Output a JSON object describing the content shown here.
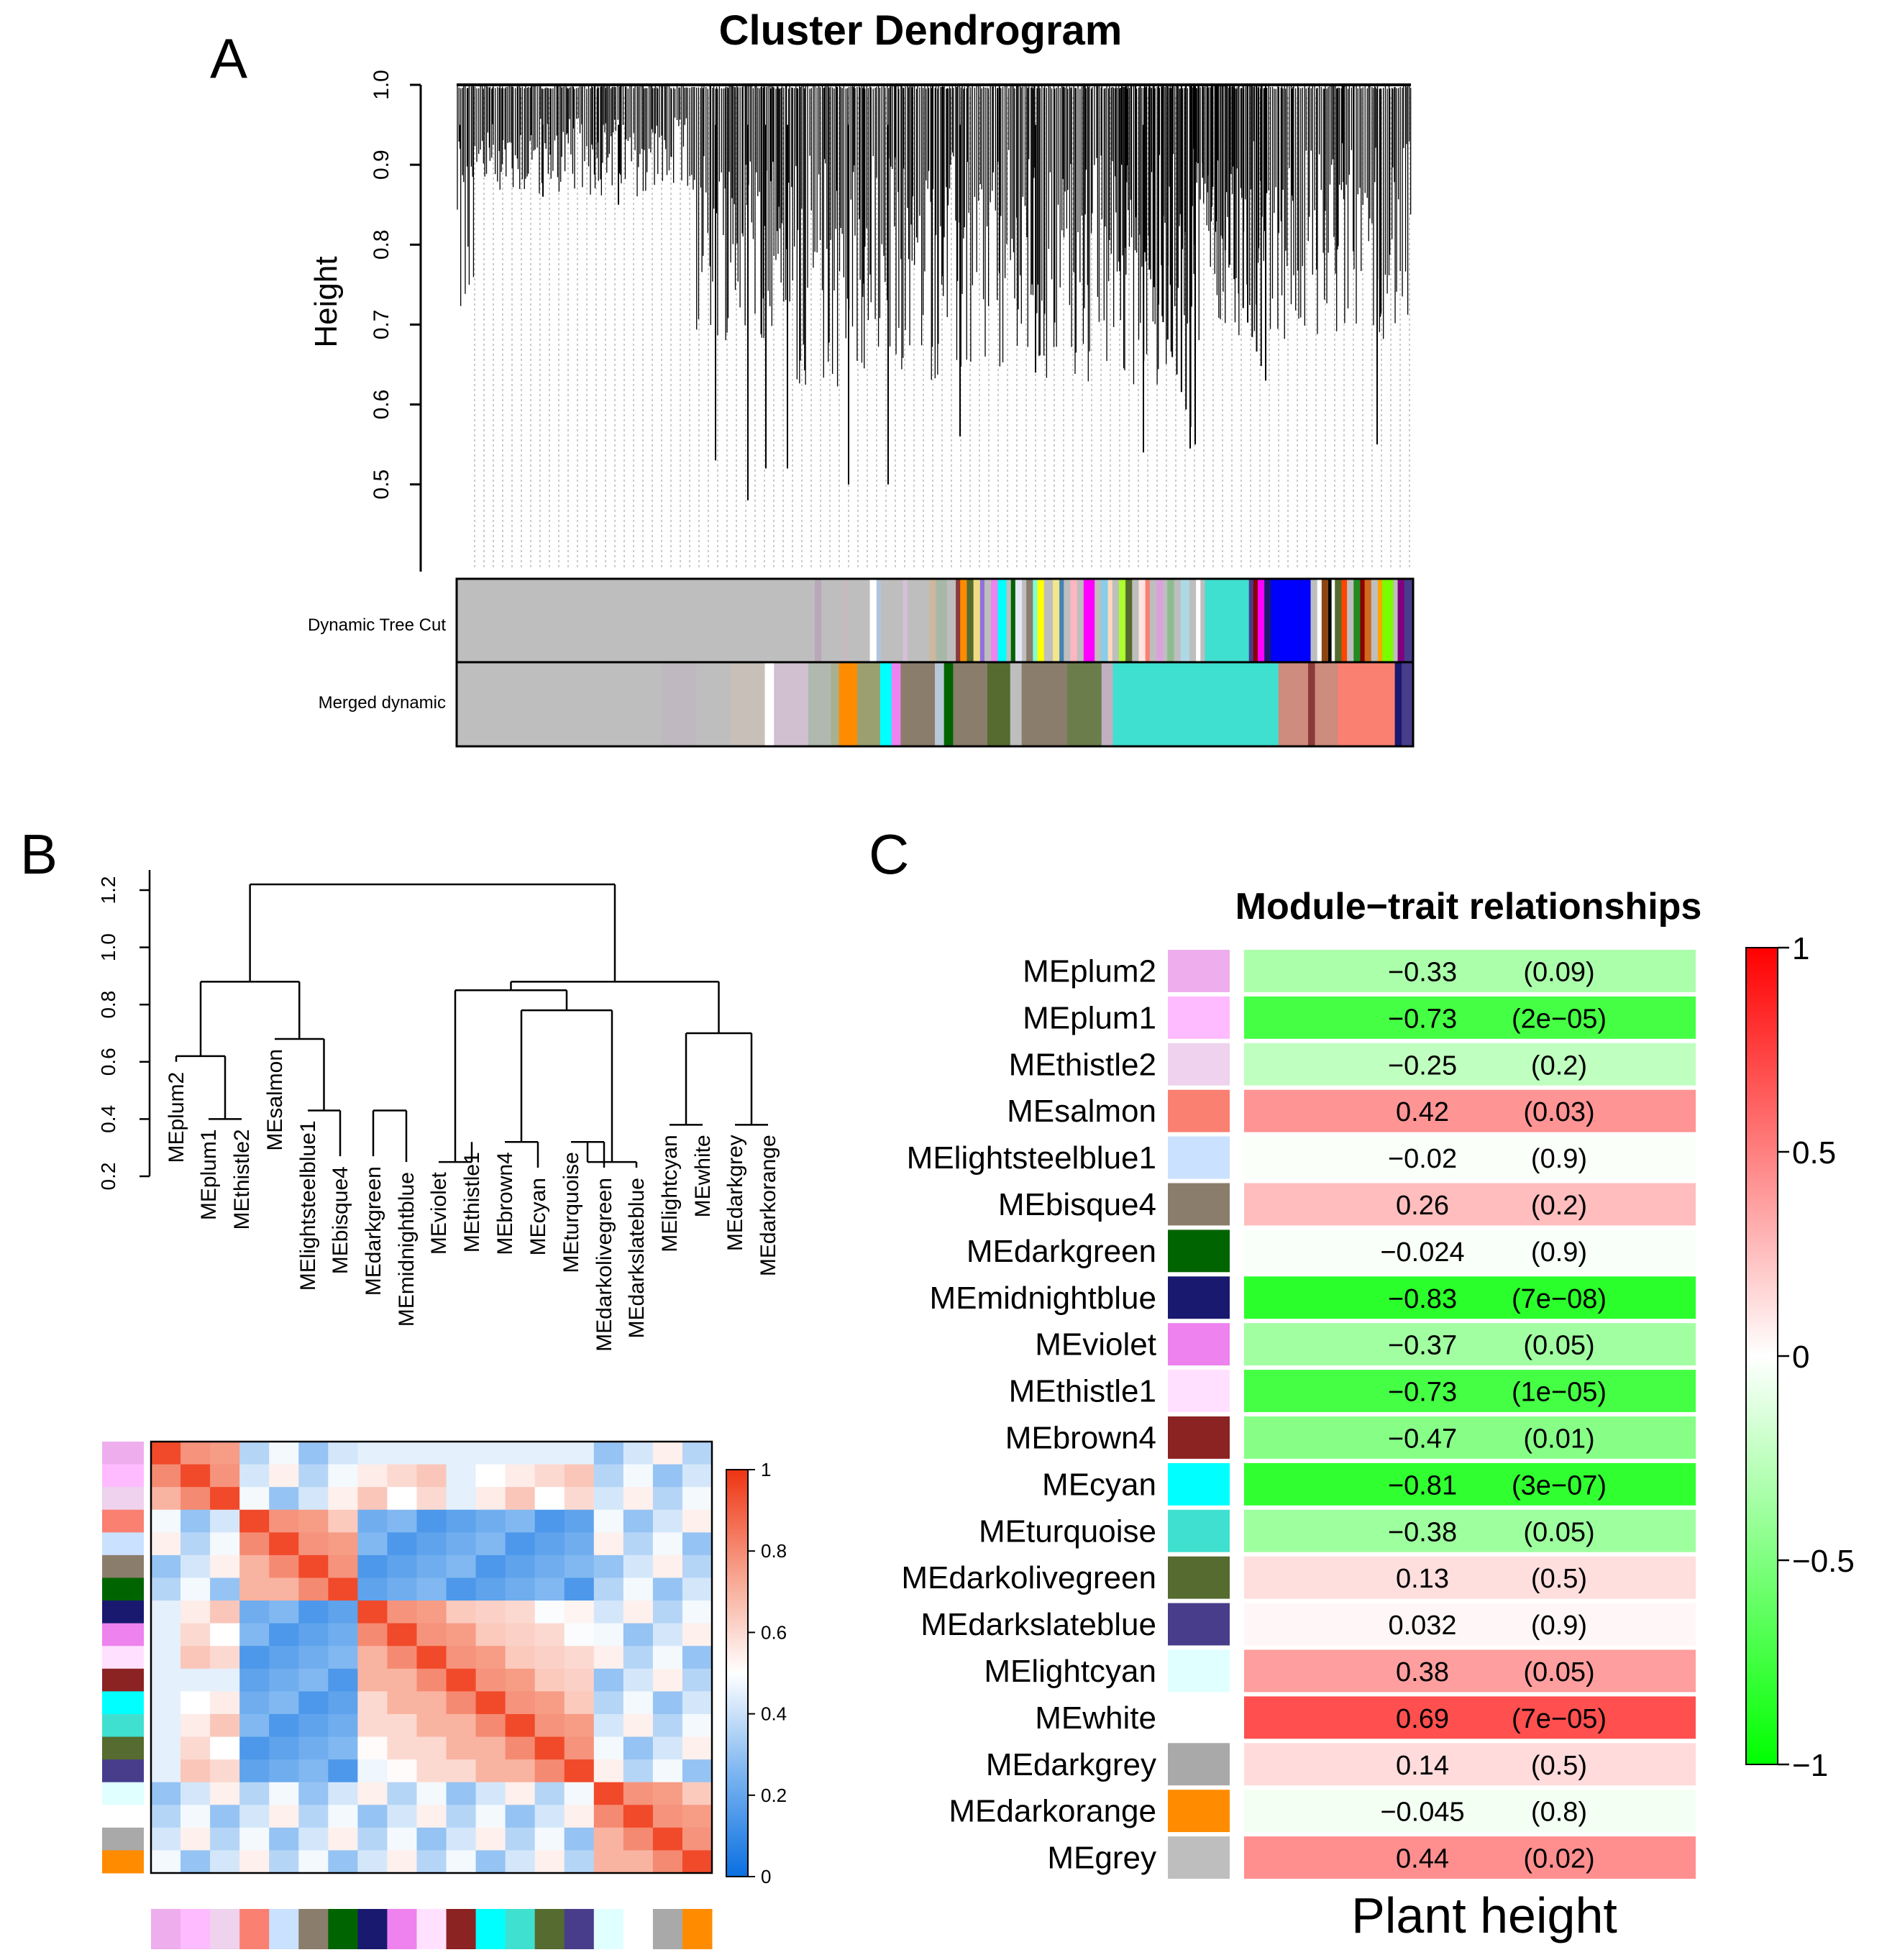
{
  "panel_labels": {
    "a": "A",
    "b": "B",
    "c": "C"
  },
  "chart_data": [
    {
      "type": "dendrogram",
      "title": "Cluster Dendrogram",
      "ylabel": "Height",
      "ylim": [
        0.4,
        1.0
      ],
      "yticks": [
        0.5,
        0.6,
        0.7,
        0.8,
        0.9,
        1.0
      ],
      "color_rows": [
        "Dynamic Tree Cut",
        "Merged dynamic"
      ],
      "dynamic_segments": [
        [
          "#bebebe",
          0.325
        ],
        [
          "#b8a8b8",
          0.006
        ],
        [
          "#bebebe",
          0.02
        ],
        [
          "#c8b8c0",
          0.004
        ],
        [
          "#bebebe",
          0.02
        ],
        [
          "#ffffff",
          0.006
        ],
        [
          "#b0c4de",
          0.004
        ],
        [
          "#bebebe",
          0.02
        ],
        [
          "#d8bfd8",
          0.004
        ],
        [
          "#bebebe",
          0.02
        ],
        [
          "#cdb79e",
          0.006
        ],
        [
          "#a8b8a8",
          0.01
        ],
        [
          "#bebebe",
          0.008
        ],
        [
          "#8b3a3a",
          0.004
        ],
        [
          "#ff8c00",
          0.006
        ],
        [
          "#556b2f",
          0.006
        ],
        [
          "#eedd82",
          0.006
        ],
        [
          "#9370db",
          0.004
        ],
        [
          "#bebebe",
          0.006
        ],
        [
          "#ee82ee",
          0.006
        ],
        [
          "#00ffff",
          0.008
        ],
        [
          "#bebebe",
          0.004
        ],
        [
          "#006400",
          0.004
        ],
        [
          "#e6e6fa",
          0.006
        ],
        [
          "#bebebe",
          0.004
        ],
        [
          "#8b7d6b",
          0.006
        ],
        [
          "#7fffd4",
          0.004
        ],
        [
          "#ffff00",
          0.006
        ],
        [
          "#bebebe",
          0.008
        ],
        [
          "#f0e68c",
          0.006
        ],
        [
          "#4682b4",
          0.004
        ],
        [
          "#bebebe",
          0.006
        ],
        [
          "#ffb6c1",
          0.006
        ],
        [
          "#bebebe",
          0.006
        ],
        [
          "#ff00ff",
          0.01
        ],
        [
          "#bebebe",
          0.006
        ],
        [
          "#87ceeb",
          0.006
        ],
        [
          "#ffdab9",
          0.004
        ],
        [
          "#bebebe",
          0.006
        ],
        [
          "#adff2f",
          0.006
        ],
        [
          "#556b2f",
          0.006
        ],
        [
          "#bebebe",
          0.006
        ],
        [
          "#ffe4e1",
          0.006
        ],
        [
          "#fa8072",
          0.004
        ],
        [
          "#bebebe",
          0.006
        ],
        [
          "#dda0dd",
          0.006
        ],
        [
          "#bebebe",
          0.004
        ],
        [
          "#8fbc8f",
          0.006
        ],
        [
          "#bebebe",
          0.006
        ],
        [
          "#add8e6",
          0.008
        ],
        [
          "#bebebe",
          0.006
        ],
        [
          "#ffffff",
          0.004
        ],
        [
          "#bebebe",
          0.004
        ],
        [
          "#40e0d0",
          0.04
        ],
        [
          "#483d8b",
          0.004
        ],
        [
          "#8b0000",
          0.004
        ],
        [
          "#ff00ff",
          0.006
        ],
        [
          "#191970",
          0.006
        ],
        [
          "#0000ff",
          0.036
        ],
        [
          "#bebebe",
          0.006
        ],
        [
          "#ffffff",
          0.004
        ],
        [
          "#8b4513",
          0.006
        ],
        [
          "#000000",
          0.003
        ],
        [
          "#ffffff",
          0.003
        ],
        [
          "#556b2f",
          0.006
        ],
        [
          "#ff4500",
          0.005
        ],
        [
          "#bebebe",
          0.006
        ],
        [
          "#228b22",
          0.006
        ],
        [
          "#8b0000",
          0.004
        ],
        [
          "#d2691e",
          0.006
        ],
        [
          "#bebebe",
          0.006
        ],
        [
          "#ffa500",
          0.004
        ],
        [
          "#7cfc00",
          0.01
        ],
        [
          "#bebebe",
          0.004
        ],
        [
          "#800080",
          0.006
        ],
        [
          "#483d8b",
          0.008
        ]
      ],
      "merged_segments": [
        [
          "#bebebe",
          0.18
        ],
        [
          "#c0b8c0",
          0.03
        ],
        [
          "#bebebe",
          0.03
        ],
        [
          "#c8c0b8",
          0.03
        ],
        [
          "#ffffff",
          0.008
        ],
        [
          "#d0c0d0",
          0.03
        ],
        [
          "#b0b8b0",
          0.02
        ],
        [
          "#a8b090",
          0.007
        ],
        [
          "#ff8c00",
          0.016
        ],
        [
          "#9aa070",
          0.02
        ],
        [
          "#00ffff",
          0.01
        ],
        [
          "#ee82ee",
          0.008
        ],
        [
          "#8b7d6b",
          0.03
        ],
        [
          "#b8c8d8",
          0.008
        ],
        [
          "#006400",
          0.008
        ],
        [
          "#8b7d6b",
          0.03
        ],
        [
          "#556b2f",
          0.02
        ],
        [
          "#bebebe",
          0.01
        ],
        [
          "#8b7d6b",
          0.04
        ],
        [
          "#6b7d4b",
          0.03
        ],
        [
          "#c0b0c0",
          0.01
        ],
        [
          "#40e0d0",
          0.145
        ],
        [
          "#cd8c7d",
          0.026
        ],
        [
          "#8b3a3a",
          0.006
        ],
        [
          "#cd8c7d",
          0.02
        ],
        [
          "#fa8072",
          0.05
        ],
        [
          "#191970",
          0.006
        ],
        [
          "#483d8b",
          0.01
        ]
      ]
    },
    {
      "type": "dendrogram",
      "ylim": [
        0.2,
        1.2
      ],
      "yticks": [
        0.2,
        0.4,
        0.6,
        0.8,
        1.0,
        1.2
      ],
      "leaves": [
        "MEplum2",
        "MEplum1",
        "MEthistle2",
        "MEsalmon",
        "MElightsteelblue1",
        "MEbisque4",
        "MEdarkgreen",
        "MEmidnightblue",
        "MEviolet",
        "MEthistle1",
        "MEbrown4",
        "MEcyan",
        "MEturquoise",
        "MEdarkolivegreen",
        "MEdarkslateblue",
        "MElightcyan",
        "MEwhite",
        "MEdarkgrey",
        "MEdarkorange"
      ],
      "leaf_colors": [
        "#eeaeee",
        "#ffbbff",
        "#eed2ee",
        "#fa8072",
        "#cae1ff",
        "#8b7d6b",
        "#006400",
        "#191970",
        "#ee82ee",
        "#ffe1ff",
        "#8b2323",
        "#00ffff",
        "#40e0d0",
        "#556b2f",
        "#483d8b",
        "#e0ffff",
        "#ffffff",
        "#a9a9a9",
        "#ff8c00"
      ],
      "merges": [
        [
          -2,
          -3,
          0.4
        ],
        [
          -1,
          1,
          0.62
        ],
        [
          -5,
          -6,
          0.43
        ],
        [
          -7,
          -8,
          0.43
        ],
        [
          -13,
          -14,
          0.32
        ],
        [
          -16,
          -17,
          0.38
        ],
        [
          -18,
          -19,
          0.38
        ],
        [
          -11,
          -12,
          0.32
        ],
        [
          -15,
          5,
          0.25
        ],
        [
          -9,
          -10,
          0.25
        ],
        [
          -4,
          3,
          0.68
        ],
        [
          2,
          11,
          0.88
        ],
        [
          8,
          9,
          0.78
        ],
        [
          10,
          13,
          0.85
        ],
        [
          6,
          7,
          0.7
        ],
        [
          14,
          15,
          0.88
        ],
        [
          12,
          16,
          1.22
        ]
      ]
    },
    {
      "type": "heatmap",
      "color_scale": [
        "#2b83e6",
        "#ffffff",
        "#f03a1e"
      ],
      "legend_ticks": [
        "0",
        "0.2",
        "0.4",
        "0.6",
        "0.8",
        "1"
      ],
      "rows": [
        "MEplum2",
        "MEplum1",
        "MEthistle2",
        "MEsalmon",
        "MElightsteelblue1",
        "MEbisque4",
        "MEdarkgreen",
        "MEmidnightblue",
        "MEviolet",
        "MEthistle1",
        "MEbrown4",
        "MEcyan",
        "MEturquoise",
        "MEdarkolivegreen",
        "MEdarkslateblue",
        "MElightcyan",
        "MEwhite",
        "MEdarkgrey",
        "MEdarkorange"
      ]
    },
    {
      "type": "heatmap",
      "title": "Module−trait relationships",
      "xlabel": "Plant height",
      "value_range": [
        -1,
        1
      ],
      "colorbar_ticks": [
        "1",
        "0.5",
        "0",
        "−0.5",
        "−1"
      ],
      "modules": [
        {
          "name": "MEplum2",
          "color": "#eeaeee",
          "corr": -0.33,
          "label": "−0.33",
          "p": "(0.09)"
        },
        {
          "name": "MEplum1",
          "color": "#ffbbff",
          "corr": -0.73,
          "label": "−0.73",
          "p": "(2e−05)"
        },
        {
          "name": "MEthistle2",
          "color": "#eed2ee",
          "corr": -0.25,
          "label": "−0.25",
          "p": "(0.2)"
        },
        {
          "name": "MEsalmon",
          "color": "#fa8072",
          "corr": 0.42,
          "label": "0.42",
          "p": "(0.03)"
        },
        {
          "name": "MElightsteelblue1",
          "color": "#cae1ff",
          "corr": -0.02,
          "label": "−0.02",
          "p": "(0.9)"
        },
        {
          "name": "MEbisque4",
          "color": "#8b7d6b",
          "corr": 0.26,
          "label": "0.26",
          "p": "(0.2)"
        },
        {
          "name": "MEdarkgreen",
          "color": "#006400",
          "corr": -0.024,
          "label": "−0.024",
          "p": "(0.9)"
        },
        {
          "name": "MEmidnightblue",
          "color": "#191970",
          "corr": -0.83,
          "label": "−0.83",
          "p": "(7e−08)"
        },
        {
          "name": "MEviolet",
          "color": "#ee82ee",
          "corr": -0.37,
          "label": "−0.37",
          "p": "(0.05)"
        },
        {
          "name": "MEthistle1",
          "color": "#ffe1ff",
          "corr": -0.73,
          "label": "−0.73",
          "p": "(1e−05)"
        },
        {
          "name": "MEbrown4",
          "color": "#8b2323",
          "corr": -0.47,
          "label": "−0.47",
          "p": "(0.01)"
        },
        {
          "name": "MEcyan",
          "color": "#00ffff",
          "corr": -0.81,
          "label": "−0.81",
          "p": "(3e−07)"
        },
        {
          "name": "MEturquoise",
          "color": "#40e0d0",
          "corr": -0.38,
          "label": "−0.38",
          "p": "(0.05)"
        },
        {
          "name": "MEdarkolivegreen",
          "color": "#556b2f",
          "corr": 0.13,
          "label": "0.13",
          "p": "(0.5)"
        },
        {
          "name": "MEdarkslateblue",
          "color": "#483d8b",
          "corr": 0.032,
          "label": "0.032",
          "p": "(0.9)"
        },
        {
          "name": "MElightcyan",
          "color": "#e0ffff",
          "corr": 0.38,
          "label": "0.38",
          "p": "(0.05)"
        },
        {
          "name": "MEwhite",
          "color": "#ffffff",
          "corr": 0.69,
          "label": "0.69",
          "p": "(7e−05)"
        },
        {
          "name": "MEdarkgrey",
          "color": "#a9a9a9",
          "corr": 0.14,
          "label": "0.14",
          "p": "(0.5)"
        },
        {
          "name": "MEdarkorange",
          "color": "#ff8c00",
          "corr": -0.045,
          "label": "−0.045",
          "p": "(0.8)"
        },
        {
          "name": "MEgrey",
          "color": "#bebebe",
          "corr": 0.44,
          "label": "0.44",
          "p": "(0.02)"
        }
      ]
    }
  ]
}
